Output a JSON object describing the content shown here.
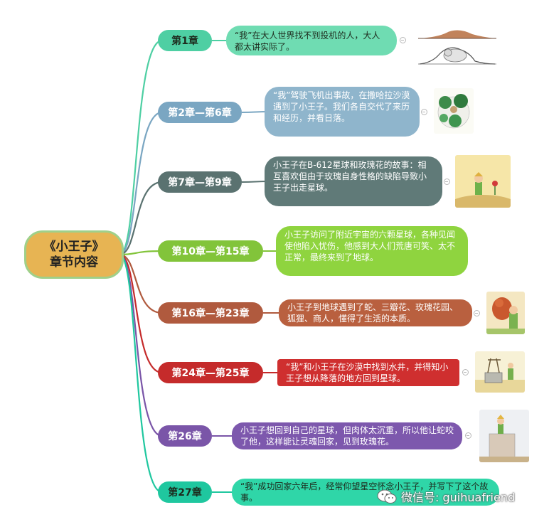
{
  "root": {
    "title": "《小王子》",
    "subtitle": "章节内容"
  },
  "chapters": [
    {
      "label": "第1章",
      "summary": "“我”在大人世界找不到投机的人，大人都太讲实际了。",
      "color": "#4ecfa3",
      "summary_color": "#6fdcb2",
      "picture": "boa-constrictor-and-elephant-drawings"
    },
    {
      "label": "第2章—第6章",
      "summary": "“我”驾驶飞机出事故，在撒哈拉沙漠遇到了小王子。我们各自交代了来历和经历，并看日落。",
      "color": "#7aa6c2",
      "summary_color": "#8fb5cc",
      "picture": "baobab-planet"
    },
    {
      "label": "第7章—第9章",
      "summary": "小王子在B-612星球和玫瑰花的故事：相互喜欢但由于玫瑰自身性格的缺陷导致小王子出走星球。",
      "color": "#5a7270",
      "summary_color": "#607a78",
      "picture": "prince-with-rose"
    },
    {
      "label": "第10章—第15章",
      "summary": "小王子访问了附近宇宙的六颗星球，各种见闻使他陷入忧伤，他感到大人们荒唐可笑、太不正常，最终来到了地球。",
      "color": "#82c43a",
      "summary_color": "#8fd43f",
      "picture": ""
    },
    {
      "label": "第16章—第23章",
      "summary": "小王子到地球遇到了蛇、三瓣花、玫瑰花园、狐狸、商人，懂得了生活的本质。",
      "color": "#b05a3e",
      "summary_color": "#b9603f",
      "picture": "prince-with-fox"
    },
    {
      "label": "第24章—第25章",
      "summary": "“我”和小王子在沙漠中找到水井，并得知小王子想从降落的地方回到星球。",
      "color": "#c52b2b",
      "summary_color": "#cf2f2f",
      "picture": "desert-well"
    },
    {
      "label": "第26章",
      "summary": "小王子想回到自己的星球，但肉体太沉重，所以他让蛇咬了他，这样能让灵魂回家，见到玫瑰花。",
      "color": "#7a55a8",
      "summary_color": "#7d58ad",
      "picture": "prince-on-wall"
    },
    {
      "label": "第27章",
      "summary": "“我”成功回家六年后，经常仰望星空怀念小王子，并写下了这个故事。",
      "color": "#1fc79f",
      "summary_color": "#2fd6a8",
      "picture": ""
    }
  ],
  "watermark": {
    "text": "微信号: guihuafriend",
    "icon": "wechat-icon"
  }
}
